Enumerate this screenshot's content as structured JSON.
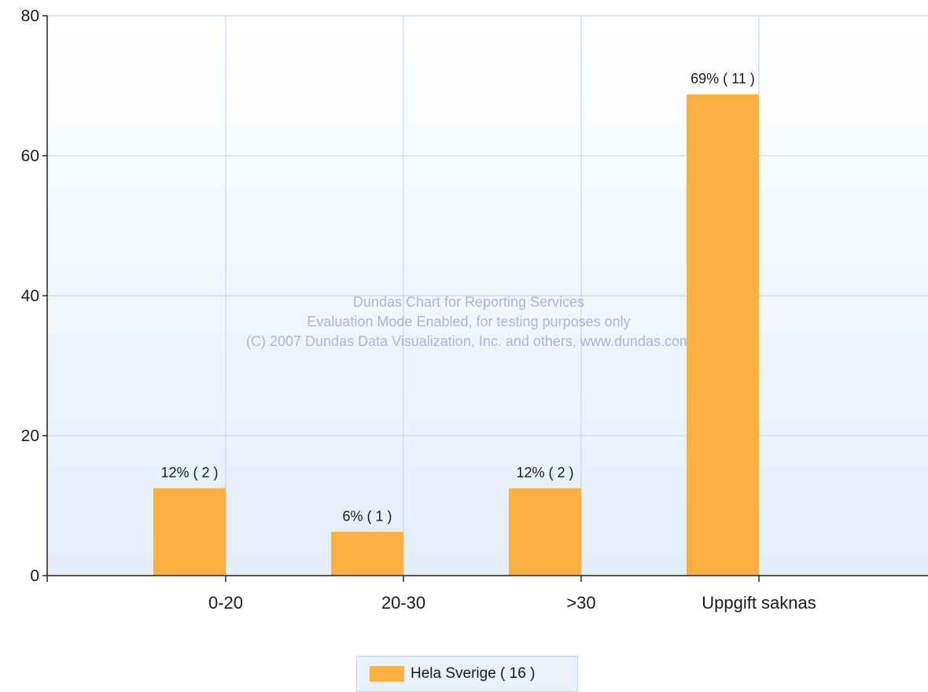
{
  "chart_data": {
    "type": "bar",
    "categories": [
      "0-20",
      "20-30",
      ">30",
      "Uppgift saknas"
    ],
    "series": [
      {
        "name": "Hela Sverige ( 16 )",
        "values": [
          12.5,
          6.25,
          12.5,
          68.75
        ]
      }
    ],
    "data_labels": [
      "12% ( 2 )",
      "6% ( 1 )",
      "12% ( 2 )",
      "69% ( 11 )"
    ],
    "y_ticks": [
      "0",
      "20",
      "40",
      "60",
      "80"
    ],
    "ylim": [
      0,
      80
    ],
    "grid": true,
    "legend_position": "bottom-center",
    "bar_color": "#f9b040",
    "watermark": [
      "Dundas Chart for Reporting Services",
      "Evaluation Mode Enabled, for testing purposes only",
      "(C) 2007 Dundas Data Visualization, Inc. and others, www.dundas.com"
    ]
  },
  "legend": {
    "label": "Hela Sverige ( 16 )",
    "color": "#f9b040"
  }
}
